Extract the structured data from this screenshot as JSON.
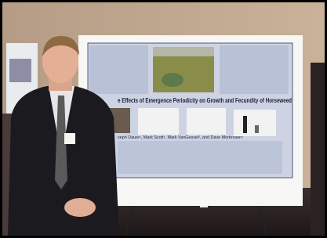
{
  "poster": {
    "title": "e Effects of Emergence Periodicity on Growth and Fecundity of Horseweed",
    "authors": "seph Dauer¹, Mark Scott¹, Mark VanGessel², and Dave Mortensen¹"
  }
}
